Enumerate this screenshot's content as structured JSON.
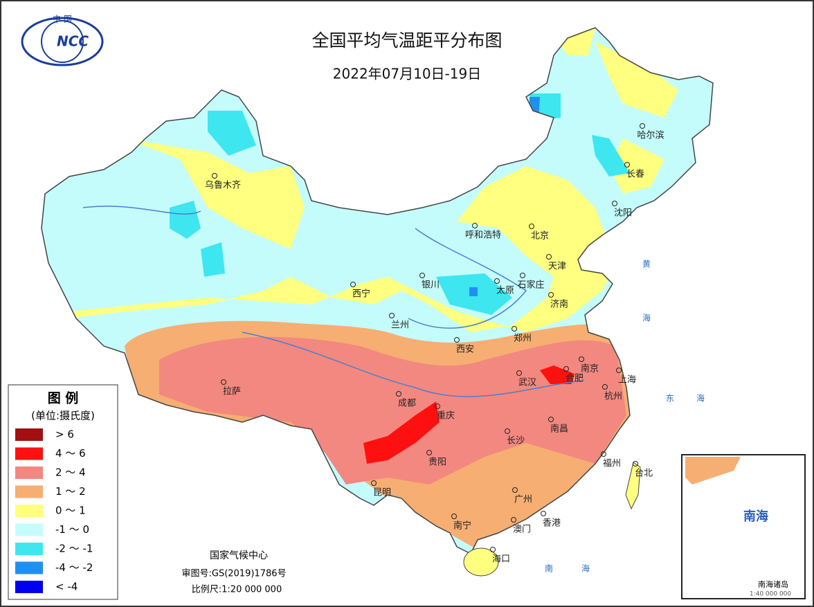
{
  "header": {
    "logo_top": "中 国",
    "logo": "NCC",
    "title": "全国平均气温距平分布图",
    "date": "2022年07月10日-19日"
  },
  "legend": {
    "title": "图 例",
    "unit": "(单位:摄氏度)",
    "items": [
      {
        "label": "> 6",
        "color": "#a01010"
      },
      {
        "label": "4 ～ 6",
        "color": "#ff1010"
      },
      {
        "label": "2 ～ 4",
        "color": "#f28880"
      },
      {
        "label": "1 ～ 2",
        "color": "#f6ae72"
      },
      {
        "label": "0 ～ 1",
        "color": "#ffff80"
      },
      {
        "label": "-1 ～ 0",
        "color": "#c4fcfc"
      },
      {
        "label": "-2 ～ -1",
        "color": "#3ee6f0"
      },
      {
        "label": "-4 ～ -2",
        "color": "#2090f0"
      },
      {
        "label": "< -4",
        "color": "#0000f0"
      }
    ]
  },
  "cities": [
    {
      "name": "乌鲁木齐"
    },
    {
      "name": "哈尔滨"
    },
    {
      "name": "长春"
    },
    {
      "name": "沈阳"
    },
    {
      "name": "呼和浩特"
    },
    {
      "name": "北京"
    },
    {
      "name": "天津"
    },
    {
      "name": "石家庄"
    },
    {
      "name": "太原"
    },
    {
      "name": "银川"
    },
    {
      "name": "西宁"
    },
    {
      "name": "兰州"
    },
    {
      "name": "济南"
    },
    {
      "name": "郑州"
    },
    {
      "name": "西安"
    },
    {
      "name": "南京"
    },
    {
      "name": "合肥"
    },
    {
      "name": "上海"
    },
    {
      "name": "杭州"
    },
    {
      "name": "武汉"
    },
    {
      "name": "拉萨"
    },
    {
      "name": "成都"
    },
    {
      "name": "重庆"
    },
    {
      "name": "长沙"
    },
    {
      "name": "南昌"
    },
    {
      "name": "贵阳"
    },
    {
      "name": "福州"
    },
    {
      "name": "台北"
    },
    {
      "name": "昆明"
    },
    {
      "name": "广州"
    },
    {
      "name": "南宁"
    },
    {
      "name": "澳门"
    },
    {
      "name": "香港"
    },
    {
      "name": "海口"
    }
  ],
  "seas": [
    {
      "name": "黄"
    },
    {
      "name": "海"
    },
    {
      "name": "东"
    },
    {
      "name": "海"
    },
    {
      "name": "南"
    },
    {
      "name": "海"
    }
  ],
  "footer": {
    "org": "国家气候中心",
    "approval": "审图号:GS(2019)1786号",
    "scale": "比例尺:1:20 000 000"
  },
  "inset": {
    "title": "南海",
    "caption": "南海诸岛",
    "scale": "1:40 000 000"
  }
}
